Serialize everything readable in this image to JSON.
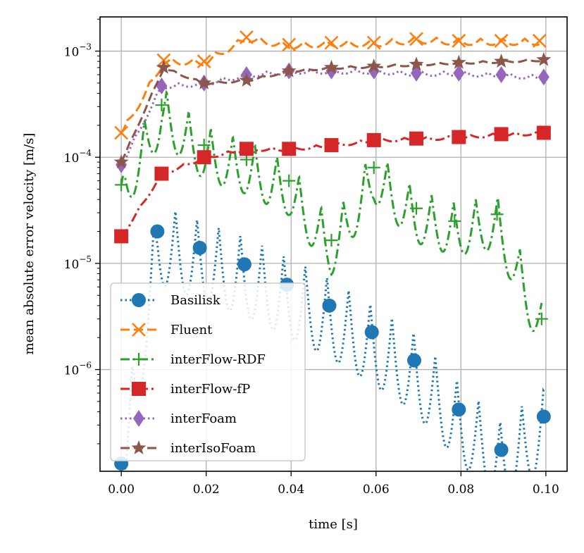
{
  "chart_data": {
    "type": "line",
    "title": "",
    "xlabel": "time [s]",
    "ylabel": "mean absolute error velocity [m/s]",
    "yscale": "log",
    "xlim": [
      -0.005,
      0.105
    ],
    "ylim": [
      1.1e-07,
      0.0021
    ],
    "xticks": [
      0.0,
      0.02,
      0.04,
      0.06,
      0.08,
      0.1
    ],
    "xtick_labels": [
      "0.00",
      "0.02",
      "0.04",
      "0.06",
      "0.08",
      "0.10"
    ],
    "yticks": [
      1e-06,
      1e-05,
      0.0001,
      0.001
    ],
    "ytick_labels": [
      {
        "base": "10",
        "exp": "−6"
      },
      {
        "base": "10",
        "exp": "−5"
      },
      {
        "base": "10",
        "exp": "−4"
      },
      {
        "base": "10",
        "exp": "−3"
      }
    ],
    "grid": true,
    "legend_position": "lower-left",
    "series": [
      {
        "name": "Basilisk",
        "color": "#1f77b4",
        "linestyle": "dotted",
        "marker": "circle",
        "osc_amp_dex": 0.75,
        "osc_period": 0.0051,
        "x": [
          0.0,
          0.0085,
          0.0185,
          0.029,
          0.039,
          0.049,
          0.059,
          0.069,
          0.0795,
          0.0895,
          0.0995
        ],
        "y": [
          1.3e-07,
          2e-05,
          1.4e-05,
          9.8e-06,
          6.3e-06,
          4e-06,
          2.25e-06,
          1.22e-06,
          4.2e-07,
          1.75e-07,
          3.6e-07
        ]
      },
      {
        "name": "Fluent",
        "color": "#ff7f0e",
        "linestyle": "dashed",
        "marker": "x",
        "osc_amp_dex": 0.06,
        "osc_period": 0.0052,
        "x": [
          0.0,
          0.01,
          0.0195,
          0.0295,
          0.0395,
          0.0495,
          0.0595,
          0.0695,
          0.0795,
          0.0895,
          0.0985
        ],
        "y": [
          0.00017,
          0.00082,
          0.0008,
          0.00135,
          0.00115,
          0.0012,
          0.0012,
          0.0013,
          0.00125,
          0.00125,
          0.00125
        ]
      },
      {
        "name": "interFlow-RDF",
        "color": "#2ca02c",
        "linestyle": "dashdot",
        "marker": "plus",
        "osc_amp_dex": 0.5,
        "osc_period": 0.0052,
        "x": [
          0.0,
          0.0095,
          0.0195,
          0.0295,
          0.0395,
          0.0495,
          0.0595,
          0.0695,
          0.0785,
          0.0885,
          0.099
        ],
        "y": [
          5.5e-05,
          0.00031,
          0.00013,
          9.5e-05,
          6e-05,
          1.65e-05,
          8e-05,
          3.3e-05,
          2.5e-05,
          2.9e-05,
          3e-06
        ]
      },
      {
        "name": "interFlow-fP",
        "color": "#d62728",
        "linestyle": "dashdot",
        "marker": "square",
        "osc_amp_dex": 0.03,
        "osc_period": 0.0052,
        "x": [
          0.0,
          0.0095,
          0.0195,
          0.0295,
          0.0395,
          0.0495,
          0.0595,
          0.0695,
          0.0795,
          0.0895,
          0.0995
        ],
        "y": [
          1.8e-05,
          7e-05,
          0.0001,
          0.00012,
          0.00012,
          0.00013,
          0.000145,
          0.00015,
          0.000155,
          0.000165,
          0.00017
        ]
      },
      {
        "name": "interFoam",
        "color": "#9467bd",
        "linestyle": "dotted",
        "marker": "diamond",
        "osc_amp_dex": 0.04,
        "osc_period": 0.0052,
        "x": [
          0.0,
          0.0095,
          0.0195,
          0.0295,
          0.0395,
          0.0495,
          0.0595,
          0.0695,
          0.0795,
          0.0895,
          0.0995
        ],
        "y": [
          8.5e-05,
          0.00047,
          0.0005,
          0.0006,
          0.00065,
          0.00065,
          0.00065,
          0.00062,
          0.00062,
          0.0006,
          0.00057
        ]
      },
      {
        "name": "interIsoFoam",
        "color": "#8c564b",
        "linestyle": "dashed",
        "marker": "star",
        "osc_amp_dex": 0.02,
        "osc_period": 0.0052,
        "x": [
          0.0,
          0.01,
          0.0195,
          0.0295,
          0.0395,
          0.0495,
          0.0595,
          0.0695,
          0.0795,
          0.0895,
          0.0995
        ],
        "y": [
          9e-05,
          0.0007,
          0.0005,
          0.00053,
          0.00065,
          0.0007,
          0.00072,
          0.00075,
          0.00078,
          0.0008,
          0.00083
        ]
      }
    ]
  }
}
